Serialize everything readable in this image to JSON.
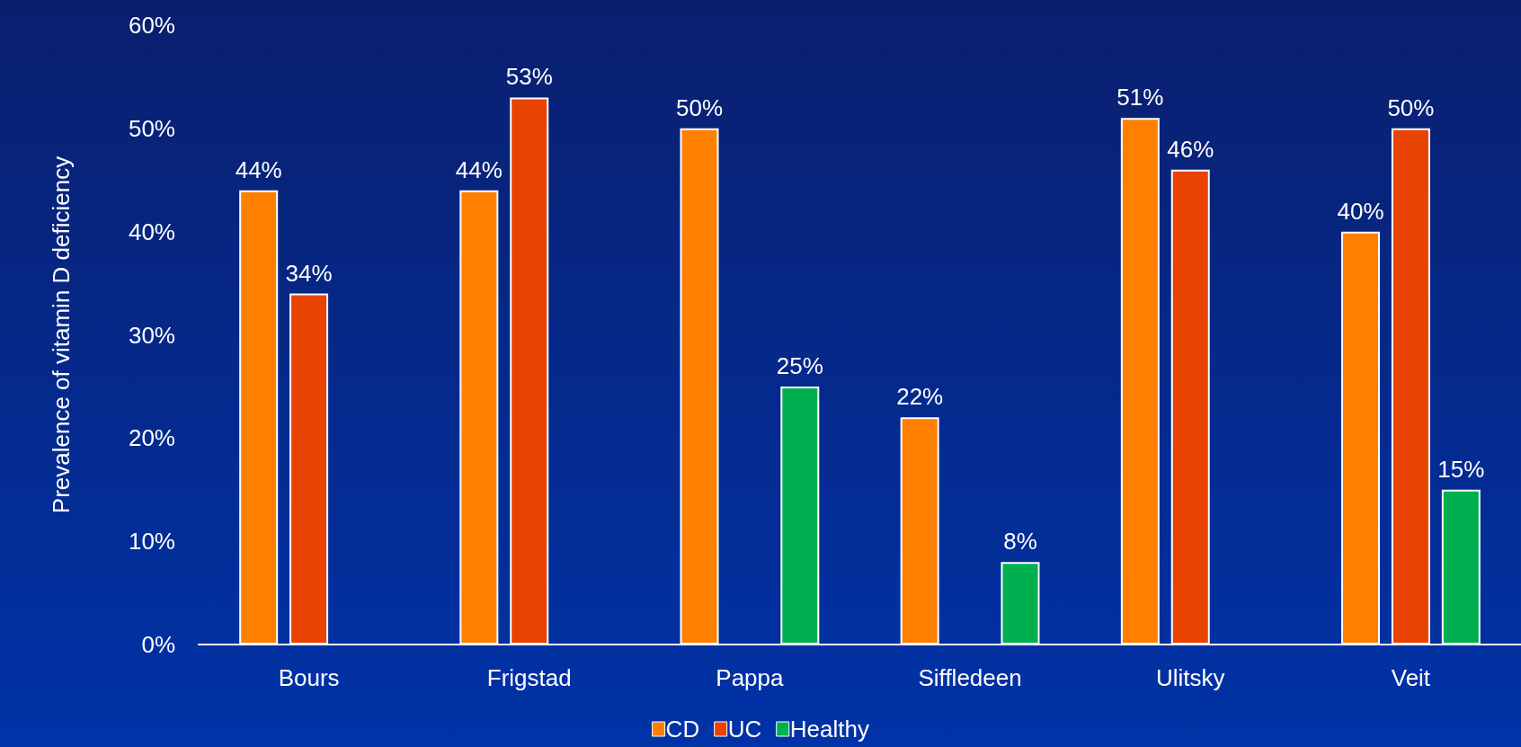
{
  "chart_data": {
    "type": "bar",
    "ylabel": "Prevalence of vitamin D deficiency",
    "categories": [
      "Bours",
      "Frigstad",
      "Pappa",
      "Siffledeen",
      "Ulitsky",
      "Veit"
    ],
    "series": [
      {
        "name": "CD",
        "color": "#ff8000",
        "values": [
          44,
          44,
          50,
          22,
          51,
          40
        ],
        "value_labels": [
          "44%",
          "44%",
          "50%",
          "22%",
          "51%",
          "40%"
        ]
      },
      {
        "name": "UC",
        "color": "#e84300",
        "values": [
          34,
          53,
          null,
          null,
          46,
          50
        ],
        "value_labels": [
          "34%",
          "53%",
          null,
          null,
          "46%",
          "50%"
        ]
      },
      {
        "name": "Healthy",
        "color": "#00b050",
        "values": [
          null,
          null,
          25,
          8,
          null,
          15
        ],
        "value_labels": [
          null,
          null,
          "25%",
          "8%",
          null,
          "15%"
        ]
      }
    ],
    "ylim": [
      0,
      60
    ],
    "yticks": [
      {
        "value": 0,
        "label": "0%"
      },
      {
        "value": 10,
        "label": "10%"
      },
      {
        "value": 20,
        "label": "20%"
      },
      {
        "value": 30,
        "label": "30%"
      },
      {
        "value": 40,
        "label": "40%"
      },
      {
        "value": 50,
        "label": "50%"
      },
      {
        "value": 60,
        "label": "60%"
      }
    ],
    "grid": false,
    "legend": "bottom"
  }
}
